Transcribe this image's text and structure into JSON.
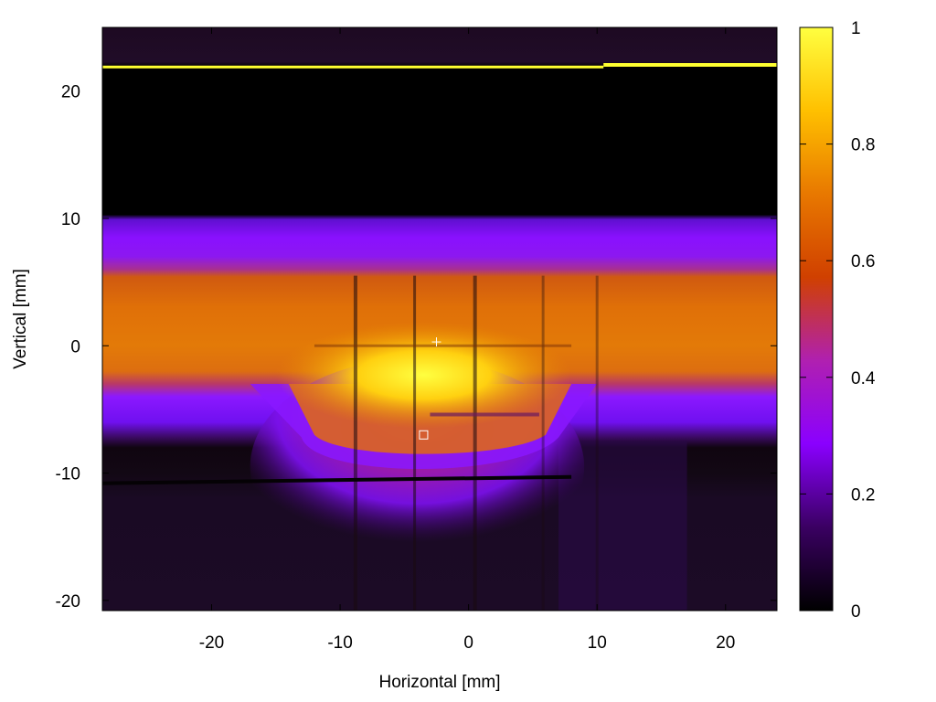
{
  "chart_data": {
    "type": "heatmap",
    "title": "",
    "xlabel": "Horizontal [mm]",
    "ylabel": "Vertical [mm]",
    "xlim": [
      -28.5,
      24
    ],
    "ylim": [
      -20.8,
      25
    ],
    "xticks": [
      -20,
      -10,
      0,
      10,
      20
    ],
    "yticks": [
      -20,
      -10,
      0,
      10,
      20
    ],
    "colorbar": {
      "min": 0,
      "max": 1,
      "ticks": [
        0,
        0.2,
        0.4,
        0.6,
        0.8,
        1
      ],
      "tick_labels": [
        "0",
        "0.2",
        "0.4",
        "0.6",
        "0.8",
        "1"
      ],
      "colormap": [
        "#000000",
        "#3a0062",
        "#8a00ff",
        "#b020b0",
        "#d04000",
        "#e87800",
        "#ffc000",
        "#ffff40"
      ]
    },
    "grid": false,
    "markers": [
      {
        "name": "crosshair",
        "symbol": "+",
        "x": -2.5,
        "y": 0.3,
        "color": "#ffffff"
      },
      {
        "name": "square",
        "symbol": "square",
        "x": -3.5,
        "y": -7.0,
        "color": "#ffffff"
      }
    ],
    "regions": [
      {
        "name": "top-bright-line",
        "x": [
          -28.5,
          24
        ],
        "y": [
          21.7,
          22.0
        ],
        "value": 1.0
      },
      {
        "name": "dark-upper-band",
        "x": [
          -28.5,
          24
        ],
        "y": [
          10,
          21.7
        ],
        "value": 0.0
      },
      {
        "name": "upper-purple-band",
        "x": [
          -28.5,
          24
        ],
        "y": [
          5.5,
          10
        ],
        "value": 0.3
      },
      {
        "name": "orange-main-band",
        "x": [
          -28.5,
          24
        ],
        "y": [
          -3,
          5.5
        ],
        "value": 0.68
      },
      {
        "name": "bright-core",
        "x": [
          -12,
          6
        ],
        "y": [
          -5.5,
          -0.5
        ],
        "value": 0.92
      },
      {
        "name": "dark-lower-region",
        "x": [
          -28.5,
          24
        ],
        "y": [
          -20.8,
          -7.5
        ],
        "value": 0.05
      }
    ]
  }
}
